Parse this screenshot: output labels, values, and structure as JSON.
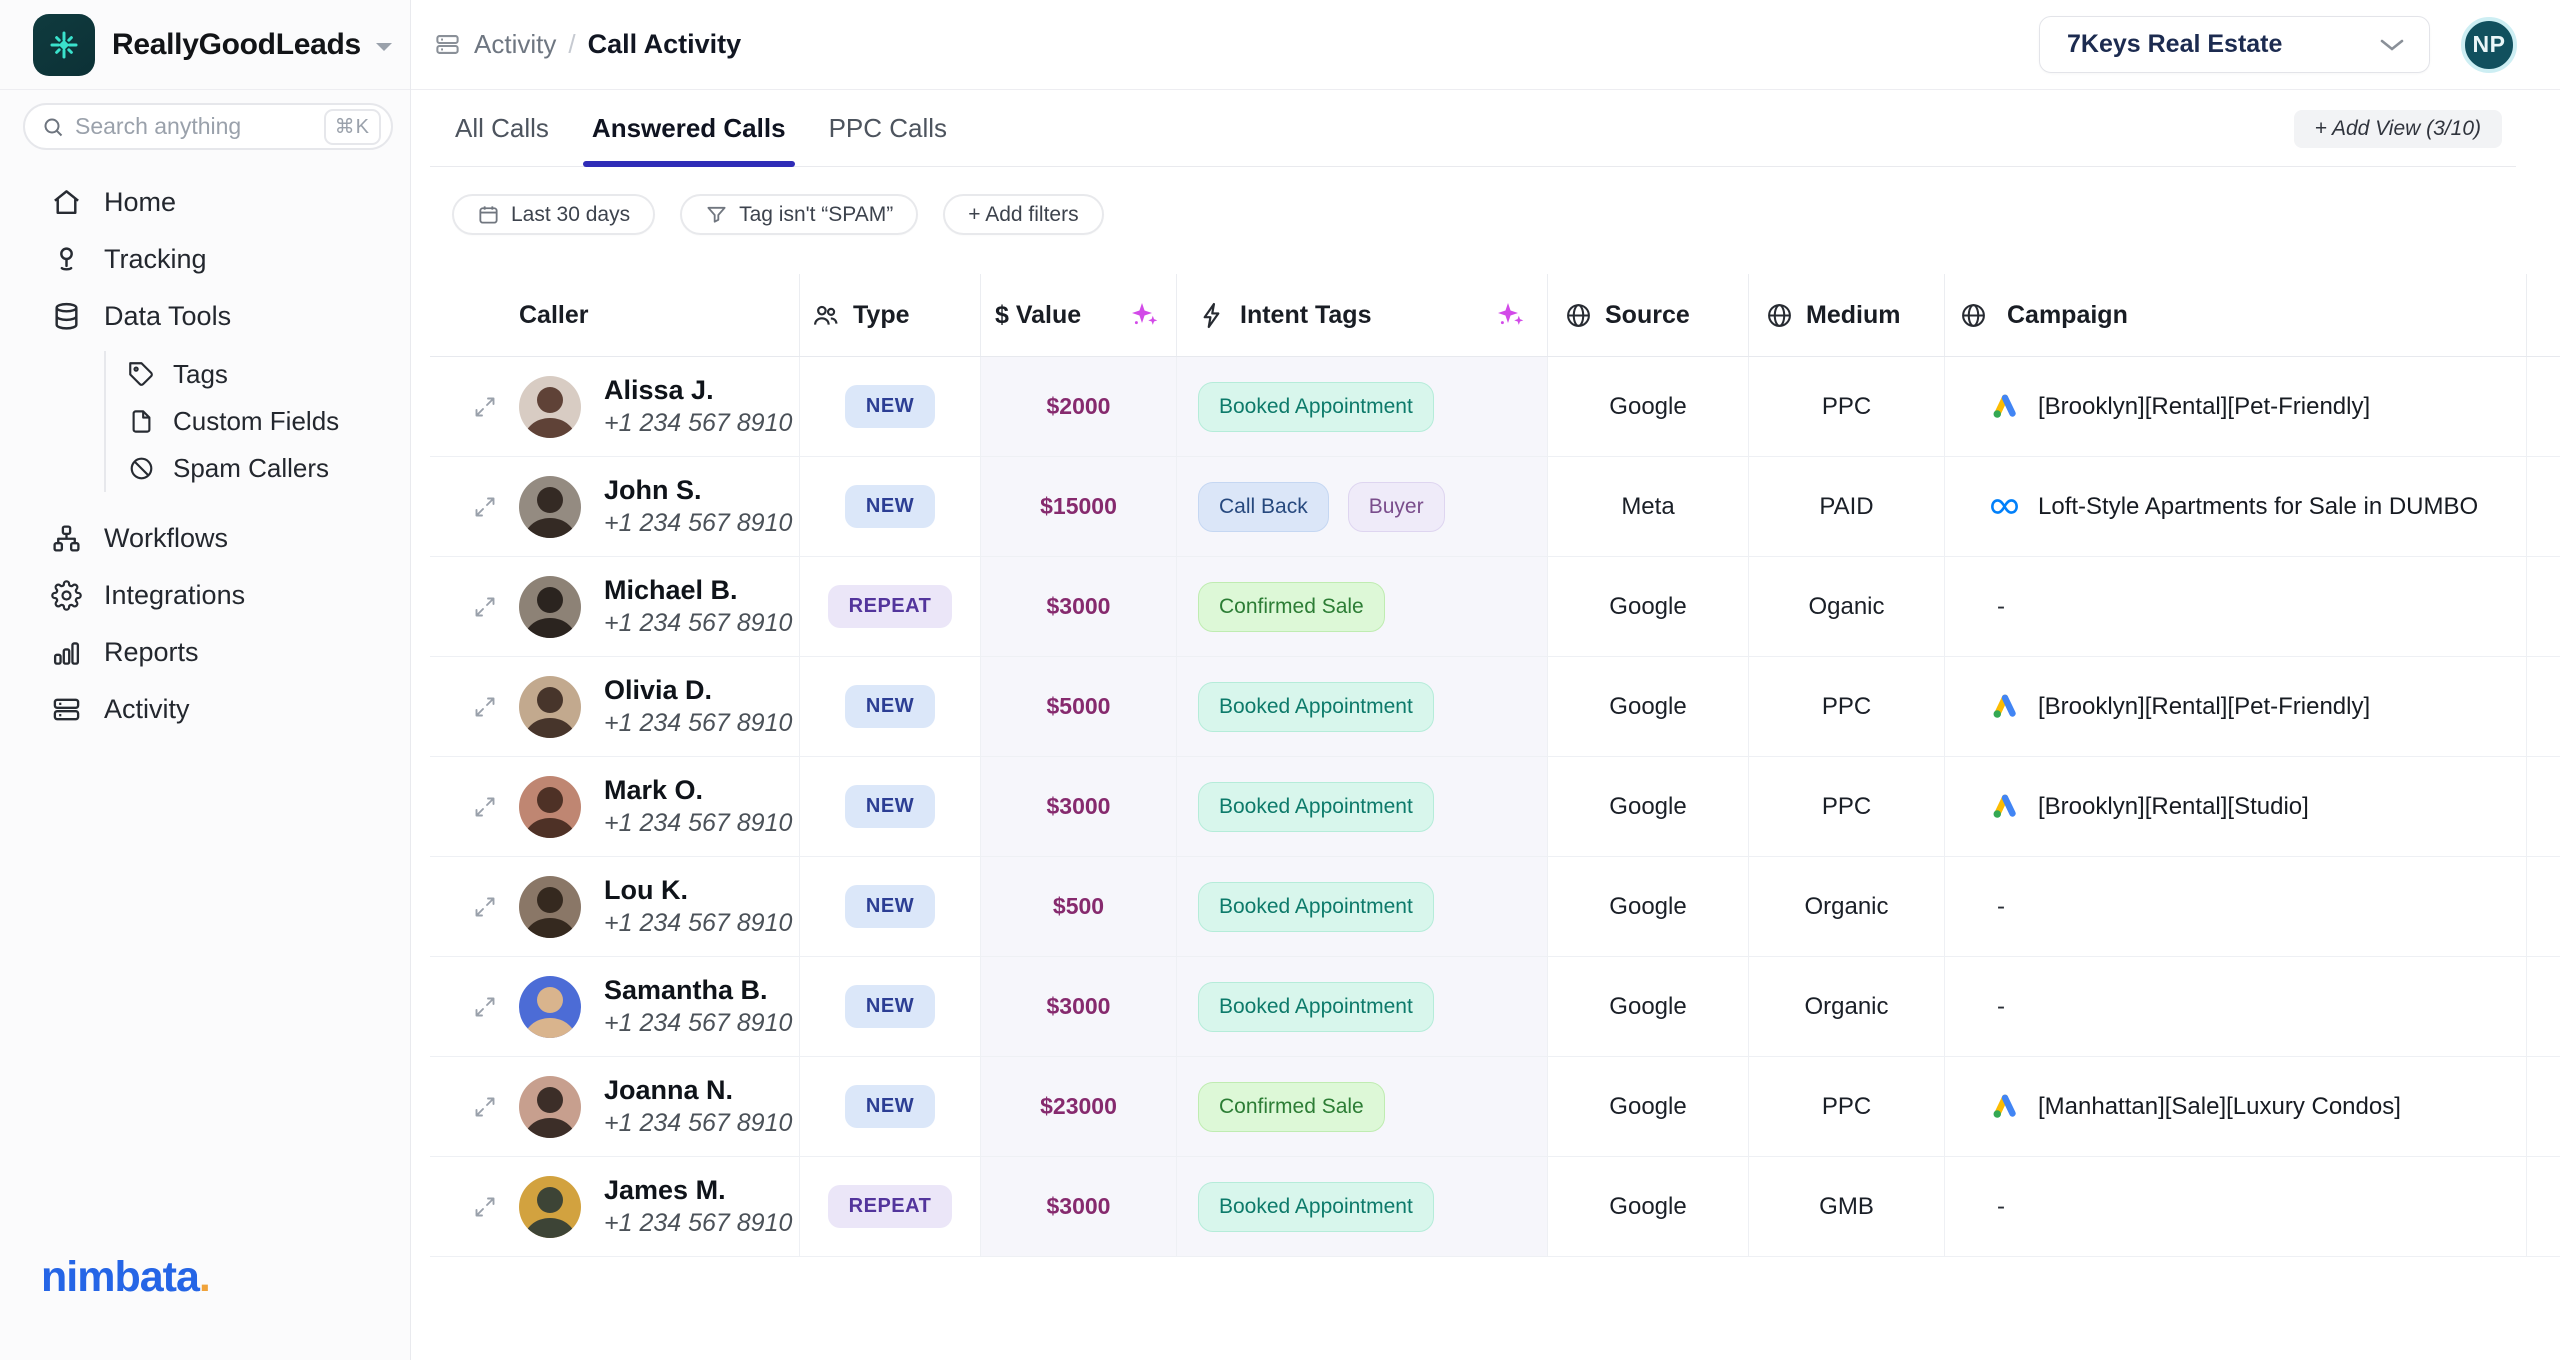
{
  "brand": {
    "name": "ReallyGoodLeads"
  },
  "search": {
    "placeholder": "Search anything",
    "shortcut": "⌘K"
  },
  "sidebar": {
    "items": [
      {
        "label": "Home",
        "icon": "home"
      },
      {
        "label": "Tracking",
        "icon": "tracking"
      },
      {
        "label": "Data Tools",
        "icon": "database",
        "children": [
          {
            "label": "Tags",
            "icon": "tag"
          },
          {
            "label": "Custom Fields",
            "icon": "file"
          },
          {
            "label": "Spam Callers",
            "icon": "ban"
          }
        ]
      },
      {
        "label": "Workflows",
        "icon": "workflow"
      },
      {
        "label": "Integrations",
        "icon": "gear"
      },
      {
        "label": "Reports",
        "icon": "chart"
      },
      {
        "label": "Activity",
        "icon": "server"
      }
    ],
    "footer_logo": {
      "text": "nimbata",
      "dot": "."
    }
  },
  "header": {
    "breadcrumb": {
      "section": "Activity",
      "page": "Call Activity"
    },
    "account": "7Keys Real Estate",
    "avatar_initials": "NP"
  },
  "tabs": {
    "items": [
      "All Calls",
      "Answered Calls",
      "PPC Calls"
    ],
    "active_index": 1,
    "add_view_label": "+ Add View (3/10)"
  },
  "filters": {
    "items": [
      {
        "icon": "calendar-icon",
        "label": "Last 30 days"
      },
      {
        "icon": "funnel-icon",
        "label": "Tag isn't “SPAM”"
      },
      {
        "icon": null,
        "label": "+ Add filters"
      }
    ]
  },
  "table": {
    "columns": [
      {
        "label": "Caller"
      },
      {
        "label": "Type",
        "icon": "users-icon"
      },
      {
        "label": "$ Value",
        "icon_right": "sparkle-icon"
      },
      {
        "label": "Intent Tags",
        "icon": "bolt-icon",
        "icon_right": "sparkle-icon"
      },
      {
        "label": "Source",
        "icon": "globe-icon"
      },
      {
        "label": "Medium",
        "icon": "globe-icon"
      },
      {
        "label": "Campaign",
        "icon": "globe-icon"
      }
    ],
    "rows": [
      {
        "name": "Alissa J.",
        "phone": "+1 234 567 8910",
        "type": "NEW",
        "value": "$2000",
        "tags": [
          {
            "label": "Booked Appointment",
            "color": "teal"
          }
        ],
        "source": "Google",
        "medium": "PPC",
        "campaign": {
          "icon": "google-ads",
          "text": "[Brooklyn][Rental][Pet-Friendly]"
        },
        "avatar": {
          "bg": "#d8ccc3",
          "sil": "#5f4237"
        }
      },
      {
        "name": "John S.",
        "phone": "+1 234 567 8910",
        "type": "NEW",
        "value": "$15000",
        "tags": [
          {
            "label": "Call Back",
            "color": "blue"
          },
          {
            "label": "Buyer",
            "color": "purple"
          }
        ],
        "source": "Meta",
        "medium": "PAID",
        "campaign": {
          "icon": "meta",
          "text": "Loft-Style Apartments for Sale in DUMBO"
        },
        "avatar": {
          "bg": "#948b81",
          "sil": "#342a24"
        }
      },
      {
        "name": "Michael B.",
        "phone": "+1 234 567 8910",
        "type": "REPEAT",
        "value": "$3000",
        "tags": [
          {
            "label": "Confirmed Sale",
            "color": "green"
          }
        ],
        "source": "Google",
        "medium": "Oganic",
        "campaign": {
          "icon": null,
          "text": "-"
        },
        "avatar": {
          "bg": "#8d8276",
          "sil": "#2b241f"
        }
      },
      {
        "name": "Olivia D.",
        "phone": "+1 234 567 8910",
        "type": "NEW",
        "value": "$5000",
        "tags": [
          {
            "label": "Booked Appointment",
            "color": "teal"
          }
        ],
        "source": "Google",
        "medium": "PPC",
        "campaign": {
          "icon": "google-ads",
          "text": "[Brooklyn][Rental][Pet-Friendly]"
        },
        "avatar": {
          "bg": "#c2a98e",
          "sil": "#47352b"
        }
      },
      {
        "name": "Mark O.",
        "phone": "+1 234 567 8910",
        "type": "NEW",
        "value": "$3000",
        "tags": [
          {
            "label": "Booked Appointment",
            "color": "teal"
          }
        ],
        "source": "Google",
        "medium": "PPC",
        "campaign": {
          "icon": "google-ads",
          "text": "[Brooklyn][Rental][Studio]"
        },
        "avatar": {
          "bg": "#bf8672",
          "sil": "#4e3126"
        }
      },
      {
        "name": "Lou K.",
        "phone": "+1 234 567 8910",
        "type": "NEW",
        "value": "$500",
        "tags": [
          {
            "label": "Booked Appointment",
            "color": "teal"
          }
        ],
        "source": "Google",
        "medium": "Organic",
        "campaign": {
          "icon": null,
          "text": "-"
        },
        "avatar": {
          "bg": "#8a7767",
          "sil": "#35291f"
        }
      },
      {
        "name": "Samantha B.",
        "phone": "+1 234 567 8910",
        "type": "NEW",
        "value": "$3000",
        "tags": [
          {
            "label": "Booked Appointment",
            "color": "teal"
          }
        ],
        "source": "Google",
        "medium": "Organic",
        "campaign": {
          "icon": null,
          "text": "-"
        },
        "avatar": {
          "bg": "#4c6cd6",
          "sil": "#d9b48d"
        }
      },
      {
        "name": "Joanna N.",
        "phone": "+1 234 567 8910",
        "type": "NEW",
        "value": "$23000",
        "tags": [
          {
            "label": "Confirmed Sale",
            "color": "green"
          }
        ],
        "source": "Google",
        "medium": "PPC",
        "campaign": {
          "icon": "google-ads",
          "text": "[Manhattan][Sale][Luxury Condos]"
        },
        "avatar": {
          "bg": "#c79f8e",
          "sil": "#3c2e28"
        }
      },
      {
        "name": "James M.",
        "phone": "+1 234 567 8910",
        "type": "REPEAT",
        "value": "$3000",
        "tags": [
          {
            "label": "Booked Appointment",
            "color": "teal"
          }
        ],
        "source": "Google",
        "medium": "GMB",
        "campaign": {
          "icon": null,
          "text": "-"
        },
        "avatar": {
          "bg": "#d2a23f",
          "sil": "#3d4436"
        }
      }
    ]
  },
  "colors": {
    "accent_tab_underline": "#2f2cb7",
    "value_text": "#862a6e",
    "sparkle": "#d24ae8",
    "badge_new_bg": "#dbe7f9",
    "badge_repeat_bg": "#ebe6f8",
    "tinted_column_bg": "#f6f6fb",
    "brand_logo_bg": "#0e383c",
    "brand_logo_star": "#3ae2cc",
    "avatar_np_bg": "#11505e",
    "nimbata_blue": "#2565e6",
    "nimbata_dot": "#f0a33b"
  }
}
